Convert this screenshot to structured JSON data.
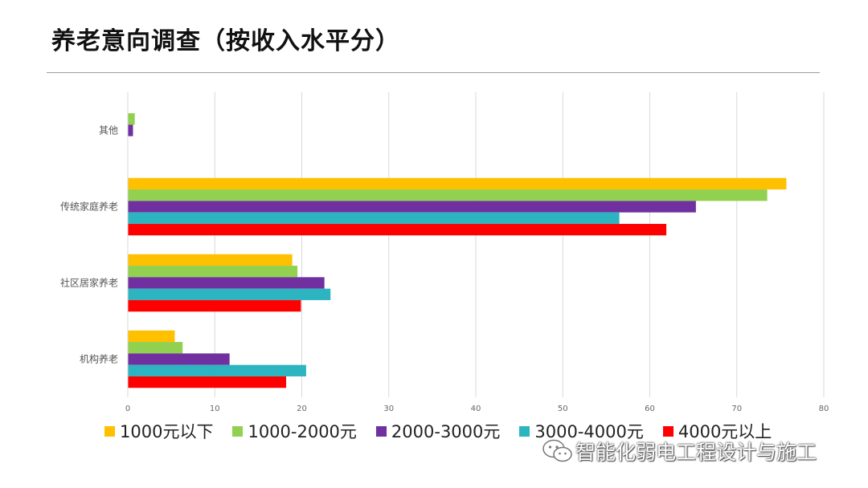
{
  "page": {
    "title": "养老意向调查（按收入水平分）"
  },
  "watermark": {
    "text": "智能化弱电工程设计与施工",
    "icon": "wechat-icon"
  },
  "chart_data": {
    "type": "bar",
    "orientation": "horizontal",
    "categories": [
      "其他",
      "传统家庭养老",
      "社区居家养老",
      "机构养老"
    ],
    "series": [
      {
        "name": "1000元以下",
        "color": "#FFC000",
        "values": [
          0,
          75.7,
          18.9,
          5.4
        ]
      },
      {
        "name": "1000-2000元",
        "color": "#92D050",
        "values": [
          0.8,
          73.5,
          19.5,
          6.3
        ]
      },
      {
        "name": "2000-3000元",
        "color": "#7030A0",
        "values": [
          0.6,
          65.3,
          22.6,
          11.7
        ]
      },
      {
        "name": "3000-4000元",
        "color": "#2CB5C0",
        "values": [
          0,
          56.5,
          23.3,
          20.5
        ]
      },
      {
        "name": "4000元以上",
        "color": "#FF0000",
        "values": [
          0,
          61.9,
          19.9,
          18.2
        ]
      }
    ],
    "xlim": [
      0,
      80
    ],
    "xticks": [
      0,
      10,
      20,
      30,
      40,
      50,
      60,
      70,
      80
    ],
    "grid": true,
    "legend_position": "bottom"
  }
}
